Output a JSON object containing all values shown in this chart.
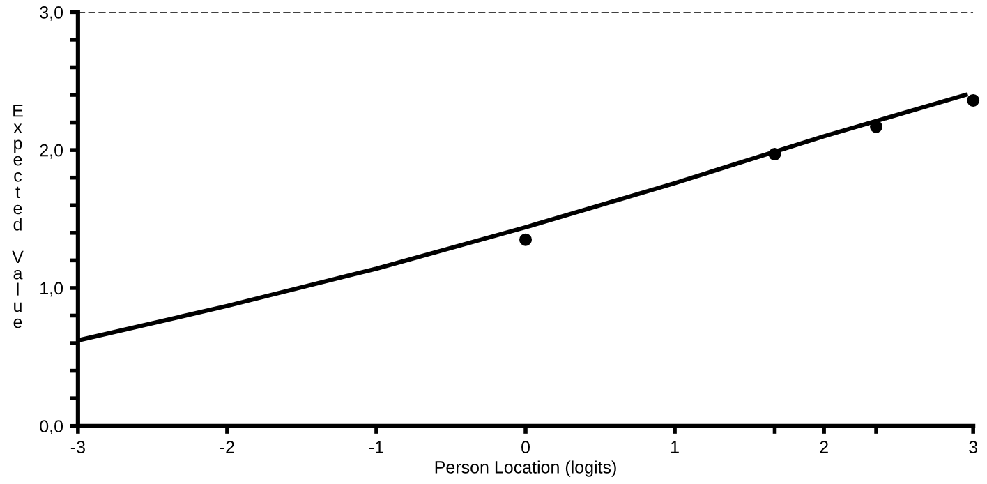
{
  "chart_data": {
    "type": "line",
    "xlabel": "Person Location (logits)",
    "ylabel": "Expected Value",
    "xlim": [
      -3,
      3
    ],
    "ylim": [
      0,
      3
    ],
    "xticks": [
      -3,
      -2,
      -1,
      0,
      1,
      2,
      3,
      {
        "value": 1.67,
        "label": null
      },
      {
        "value": 2.35,
        "label": null
      }
    ],
    "yticks": [
      {
        "value": 0,
        "label": "0,0"
      },
      {
        "value": 0.2,
        "label": null
      },
      {
        "value": 0.4,
        "label": null
      },
      {
        "value": 0.6,
        "label": null
      },
      {
        "value": 0.8,
        "label": null
      },
      {
        "value": 1,
        "label": "1,0"
      },
      {
        "value": 1.2,
        "label": null
      },
      {
        "value": 1.4,
        "label": null
      },
      {
        "value": 1.6,
        "label": null
      },
      {
        "value": 1.8,
        "label": null
      },
      {
        "value": 2,
        "label": "2,0"
      },
      {
        "value": 2.2,
        "label": null
      },
      {
        "value": 2.4,
        "label": null
      },
      {
        "value": 2.6,
        "label": null
      },
      {
        "value": 2.8,
        "label": null
      },
      {
        "value": 3,
        "label": "3,0"
      }
    ],
    "ref_lines": [
      {
        "axis": "y",
        "value": 3,
        "color": "#000000",
        "line_style": "dashed"
      }
    ],
    "series": [
      {
        "color": "#000000",
        "x": [
          -3,
          -2,
          -1,
          0,
          1,
          2,
          2.95
        ],
        "values": [
          0.62,
          0.87,
          1.14,
          1.44,
          1.76,
          2.1,
          2.4
        ],
        "marker": "none",
        "line_style": "solid"
      },
      {
        "type": "scatter",
        "color": "#000000",
        "x": [
          0,
          1.67,
          2.35,
          3
        ],
        "values": [
          1.35,
          1.97,
          2.17,
          2.36
        ],
        "marker": "circle"
      }
    ],
    "grid": false,
    "legend": false
  }
}
